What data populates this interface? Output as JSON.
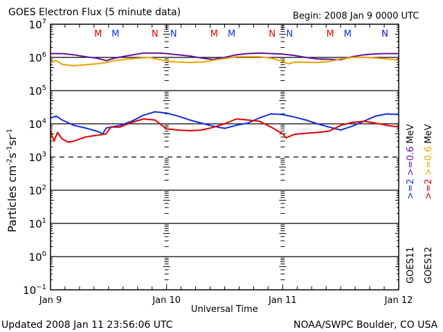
{
  "header": {
    "title": "GOES Electron Flux (5 minute data)",
    "begin": "Begin: 2008 Jan 9 0000 UTC"
  },
  "footer": {
    "updated": "Updated 2008 Jan 11 23:56:06 UTC",
    "source": "NOAA/SWPC Boulder, CO USA"
  },
  "chart_data": {
    "type": "line",
    "title": "GOES Electron Flux (5 minute data)",
    "xlabel": "Universal Time",
    "ylabel": "Particles cm-2 s-1 sr-1",
    "yscale": "log",
    "ylim": [
      0.1,
      10000000
    ],
    "xlim": [
      0,
      3
    ],
    "x_unit": "days since 2008 Jan 9 0000 UTC",
    "x_ticks": [
      "Jan 9",
      "Jan 10",
      "Jan 11",
      "Jan 12"
    ],
    "y_ticks": [
      "10^7",
      "10^6",
      "10^5",
      "10^4",
      "10^3",
      "10^2",
      "10^1",
      "10^0",
      "10^-1"
    ],
    "threshold_line": 1000,
    "grid": "horizontal decade lines",
    "markers": [
      {
        "label": "M",
        "color": "#e00000",
        "x": 0.41
      },
      {
        "label": "M",
        "color": "#1030e0",
        "x": 0.56
      },
      {
        "label": "N",
        "color": "#e00000",
        "x": 0.9
      },
      {
        "label": "N",
        "color": "#1030e0",
        "x": 1.06
      },
      {
        "label": "M",
        "color": "#e00000",
        "x": 1.41
      },
      {
        "label": "M",
        "color": "#1030e0",
        "x": 1.56
      },
      {
        "label": "N",
        "color": "#e00000",
        "x": 1.91
      },
      {
        "label": "N",
        "color": "#1030e0",
        "x": 2.06
      },
      {
        "label": "M",
        "color": "#e00000",
        "x": 2.41
      },
      {
        "label": "M",
        "color": "#1030e0",
        "x": 2.56
      },
      {
        "label": "N",
        "color": "#e00000",
        "x": 2.91
      },
      {
        "label": "N",
        "color": "#1030e0",
        "x": 3.06
      }
    ],
    "legend": {
      "placement": "right",
      "columns": [
        {
          "satellite": "GOES11",
          "low": ">=2",
          "high": ">=0.6",
          "unit": "MeV",
          "low_color": "#1030e0",
          "high_color": "#6010a0"
        },
        {
          "satellite": "GOES12",
          "low": ">=2",
          "high": ">=0.6",
          "unit": "MeV",
          "low_color": "#e00000",
          "high_color": "#f0a000"
        }
      ]
    },
    "series": [
      {
        "name": "GOES11 >=0.6 MeV",
        "color": "#6010a0",
        "x": [
          0,
          0.1,
          0.2,
          0.3,
          0.4,
          0.48,
          0.55,
          0.65,
          0.8,
          0.95,
          1.0,
          1.1,
          1.2,
          1.3,
          1.4,
          1.5,
          1.6,
          1.7,
          1.8,
          1.9,
          2.0,
          2.1,
          2.2,
          2.3,
          2.4,
          2.5,
          2.6,
          2.7,
          2.8,
          2.9,
          3.0
        ],
        "y": [
          1300000,
          1300000,
          1200000,
          1050000,
          950000,
          800000,
          950000,
          1100000,
          1350000,
          1350000,
          1300000,
          1200000,
          1100000,
          960000,
          870000,
          1000000,
          1200000,
          1300000,
          1350000,
          1300000,
          1250000,
          1150000,
          1000000,
          900000,
          880000,
          850000,
          1050000,
          1200000,
          1280000,
          1300000,
          1300000
        ]
      },
      {
        "name": "GOES12 >=0.6 MeV",
        "color": "#f0a000",
        "x": [
          0,
          0.05,
          0.1,
          0.2,
          0.3,
          0.4,
          0.48,
          0.55,
          0.7,
          0.85,
          1.0,
          1.1,
          1.2,
          1.3,
          1.4,
          1.5,
          1.6,
          1.7,
          1.8,
          1.9,
          2.0,
          2.05,
          2.1,
          2.2,
          2.3,
          2.4,
          2.5,
          2.6,
          2.7,
          2.8,
          2.9,
          3.0
        ],
        "y": [
          700000,
          800000,
          620000,
          560000,
          600000,
          640000,
          700000,
          800000,
          920000,
          1000000,
          780000,
          720000,
          700000,
          720000,
          820000,
          920000,
          1050000,
          1050000,
          1050000,
          950000,
          760000,
          640000,
          720000,
          710000,
          700000,
          750000,
          900000,
          1000000,
          1020000,
          960000,
          900000,
          820000
        ]
      },
      {
        "name": "GOES11 >=2 MeV",
        "color": "#1030e0",
        "x": [
          0,
          0.05,
          0.1,
          0.2,
          0.3,
          0.4,
          0.45,
          0.48,
          0.52,
          0.6,
          0.7,
          0.8,
          0.9,
          1.0,
          1.1,
          1.2,
          1.3,
          1.4,
          1.5,
          1.6,
          1.7,
          1.8,
          1.9,
          2.0,
          2.1,
          2.2,
          2.3,
          2.4,
          2.5,
          2.6,
          2.7,
          2.8,
          2.9,
          3.0
        ],
        "y": [
          15000,
          17000,
          13000,
          9000,
          7500,
          6000,
          5000,
          7500,
          8000,
          9000,
          12000,
          18000,
          23000,
          21000,
          17000,
          13000,
          10500,
          8500,
          7300,
          9000,
          10500,
          15000,
          20000,
          19000,
          16000,
          13000,
          10000,
          8000,
          6500,
          8500,
          12000,
          17000,
          20000,
          19000
        ]
      },
      {
        "name": "GOES12 >=2 MeV",
        "color": "#e00000",
        "x": [
          0,
          0.03,
          0.06,
          0.1,
          0.15,
          0.2,
          0.3,
          0.4,
          0.48,
          0.52,
          0.6,
          0.7,
          0.8,
          0.9,
          1.0,
          1.1,
          1.2,
          1.3,
          1.4,
          1.5,
          1.6,
          1.7,
          1.8,
          1.9,
          2.0,
          2.03,
          2.1,
          2.2,
          2.3,
          2.4,
          2.5,
          2.6,
          2.7,
          2.8,
          2.9,
          3.0
        ],
        "y": [
          6000,
          3000,
          5500,
          3500,
          2800,
          3000,
          4000,
          4500,
          5000,
          8000,
          8000,
          11000,
          14000,
          13000,
          7000,
          6500,
          6200,
          6500,
          7800,
          10000,
          14000,
          13000,
          12000,
          8000,
          5000,
          3800,
          4800,
          5200,
          5500,
          6000,
          9000,
          11000,
          12000,
          10500,
          9000,
          8000
        ]
      }
    ]
  }
}
